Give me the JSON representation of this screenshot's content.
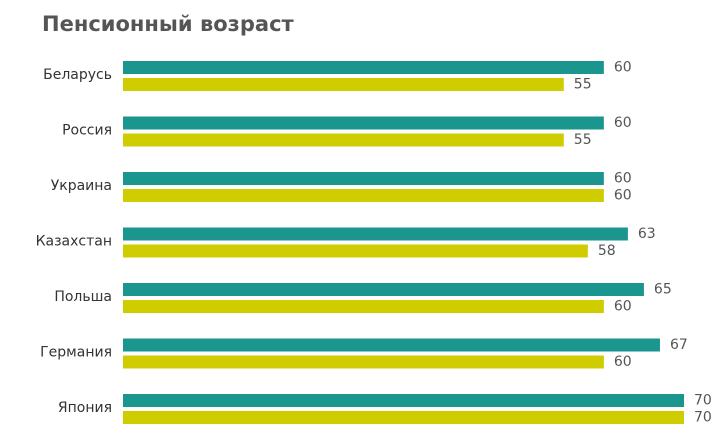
{
  "chart_data": {
    "type": "bar",
    "orientation": "horizontal",
    "title": "Пенсионный возраст",
    "categories": [
      "Беларусь",
      "Россия",
      "Украина",
      "Казахстан",
      "Польша",
      "Германия",
      "Япония"
    ],
    "series": [
      {
        "color": "#1a968f",
        "values": [
          60,
          60,
          60,
          63,
          65,
          67,
          70
        ]
      },
      {
        "color": "#cfcc00",
        "values": [
          55,
          55,
          60,
          58,
          60,
          60,
          70
        ]
      }
    ]
  }
}
